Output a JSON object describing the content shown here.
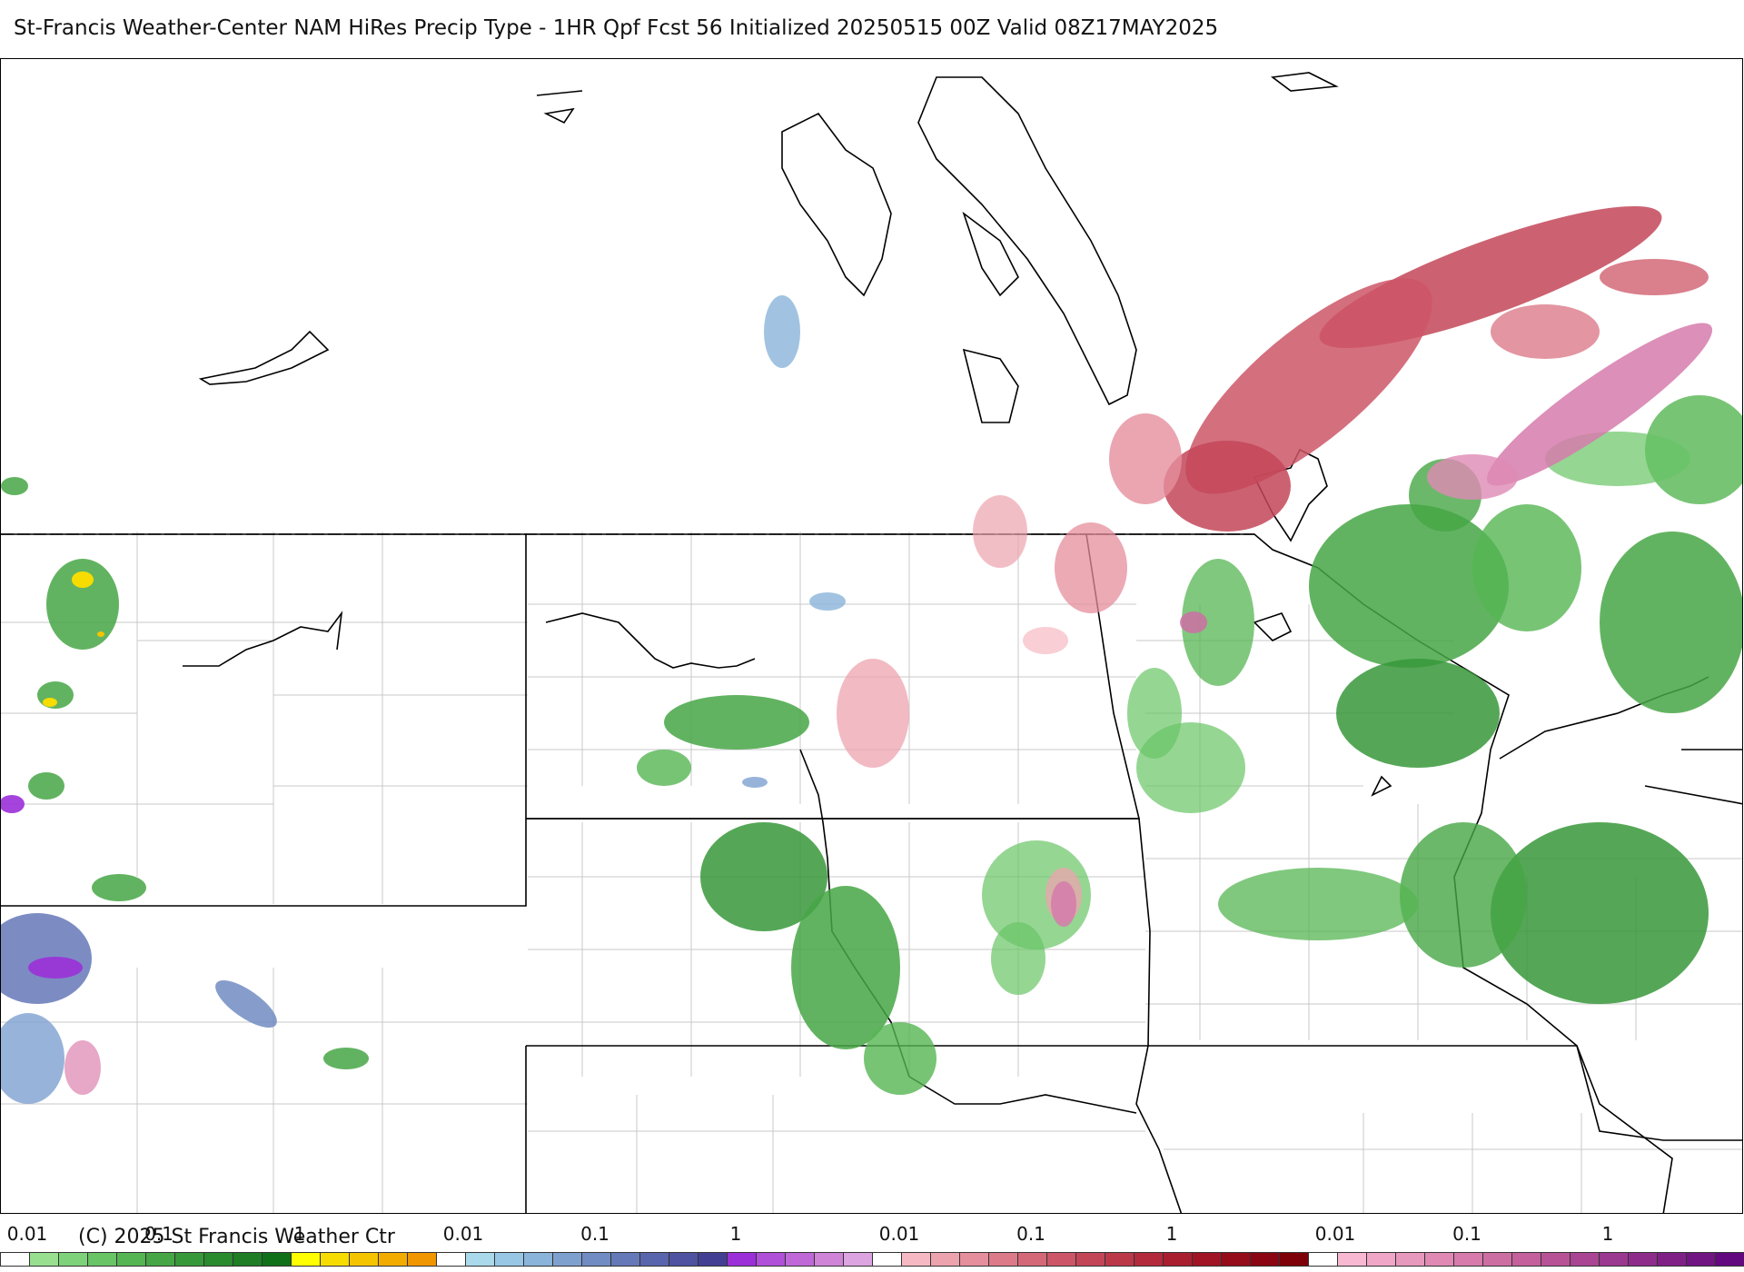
{
  "title": "St-Francis Weather-Center NAM HiRes Precip Type - 1HR Qpf Fcst 56 Initialized 20250515 00Z Valid 08Z17MAY2025",
  "copyright": "(C) 2025 St Francis Weather Ctr",
  "legend": {
    "tick_labels": [
      "0.01",
      "0.1",
      "1",
      "0.01",
      "0.1",
      "1",
      "0.01",
      "0.1",
      "1",
      "0.01",
      "0.1",
      "1"
    ],
    "groups": [
      {
        "type": "rain",
        "colors": [
          "#ffffff",
          "#98e090",
          "#7ed37a",
          "#68c465",
          "#55b553",
          "#46a645",
          "#37983a",
          "#2a8a2e",
          "#1e7d25",
          "#10701a",
          "#ffff00",
          "#f6dc00",
          "#f4c400",
          "#f2ac00",
          "#f09600"
        ]
      },
      {
        "type": "snow",
        "colors": [
          "#ffffff",
          "#a9d9ea",
          "#97c7e5",
          "#8ab4da",
          "#7ea0cf",
          "#718cc3",
          "#6578b8",
          "#5965ac",
          "#4e52a0",
          "#434093",
          "#9b30d8",
          "#b050d8",
          "#c068d8",
          "#cf84d8",
          "#dca4e0"
        ]
      },
      {
        "type": "mix",
        "colors": [
          "#ffffff",
          "#f6b9c3",
          "#eda3ae",
          "#e58e9c",
          "#dc7a89",
          "#d46878",
          "#cc5667",
          "#c34658",
          "#bb3849",
          "#b22a3c",
          "#aa1f30",
          "#a01425",
          "#950c1b",
          "#8a0612",
          "#7e0008"
        ]
      },
      {
        "type": "freezing",
        "colors": [
          "#ffffff",
          "#f8b8d2",
          "#f0a6c6",
          "#e798bd",
          "#df89b4",
          "#d67bac",
          "#cd6ea3",
          "#c4609b",
          "#b85297",
          "#a94593",
          "#9b388f",
          "#8d2c8b",
          "#7f2087",
          "#711583",
          "#63097f"
        ]
      }
    ]
  }
}
